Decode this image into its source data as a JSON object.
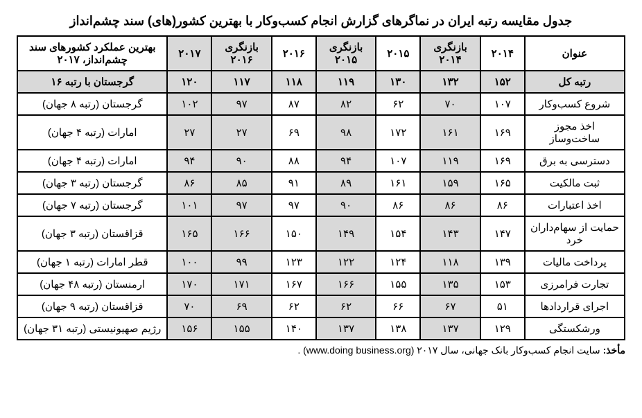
{
  "title": "جدول مقایسه رتبه ایران در نماگرهای گزارش انجام کسب‌وکار با بهترین کشور(های) سند چشم‌انداز",
  "columns": {
    "name": "عنوان",
    "y2014": "۲۰۱۴",
    "rev2014": "بازنگری ۲۰۱۴",
    "y2015": "۲۰۱۵",
    "rev2015": "بازنگری ۲۰۱۵",
    "y2016": "۲۰۱۶",
    "rev2016": "بازنگری ۲۰۱۶",
    "y2017": "۲۰۱۷",
    "best": "بهترین عملکرد کشورهای سند چشم‌انداز، ۲۰۱۷"
  },
  "col_widths": {
    "name": "col-name",
    "y2014": "col-year",
    "rev2014": "col-rev",
    "y2015": "col-year",
    "rev2015": "col-rev",
    "y2016": "col-year",
    "rev2016": "col-rev",
    "y2017": "col-year",
    "best": "col-best"
  },
  "shaded_cols": [
    "rev2014",
    "rev2015",
    "rev2016",
    "y2017"
  ],
  "rows": [
    {
      "name": "رتبه کل",
      "y2014": "۱۵۲",
      "rev2014": "۱۳۲",
      "y2015": "۱۳۰",
      "rev2015": "۱۱۹",
      "y2016": "۱۱۸",
      "rev2016": "۱۱۷",
      "y2017": "۱۲۰",
      "best": "گرجستان با رتبه ۱۶",
      "head": true
    },
    {
      "name": "شروع کسب‌وکار",
      "y2014": "۱۰۷",
      "rev2014": "۷۰",
      "y2015": "۶۲",
      "rev2015": "۸۲",
      "y2016": "۸۷",
      "rev2016": "۹۷",
      "y2017": "۱۰۲",
      "best": "گرجستان (رتبه ۸ جهان)"
    },
    {
      "name": "اخذ مجوز ساخت‌وساز",
      "y2014": "۱۶۹",
      "rev2014": "۱۶۱",
      "y2015": "۱۷۲",
      "rev2015": "۹۸",
      "y2016": "۶۹",
      "rev2016": "۲۷",
      "y2017": "۲۷",
      "best": "امارات (رتبه ۴ جهان)"
    },
    {
      "name": "دسترسی به برق",
      "y2014": "۱۶۹",
      "rev2014": "۱۱۹",
      "y2015": "۱۰۷",
      "rev2015": "۹۴",
      "y2016": "۸۸",
      "rev2016": "۹۰",
      "y2017": "۹۴",
      "best": "امارات (رتبه ۴ جهان)"
    },
    {
      "name": "ثبت مالکیت",
      "y2014": "۱۶۵",
      "rev2014": "۱۵۹",
      "y2015": "۱۶۱",
      "rev2015": "۸۹",
      "y2016": "۹۱",
      "rev2016": "۸۵",
      "y2017": "۸۶",
      "best": "گرجستان (رتبه ۳ جهان)"
    },
    {
      "name": "اخذ اعتبارات",
      "y2014": "۸۶",
      "rev2014": "۸۶",
      "y2015": "۸۶",
      "rev2015": "۹۰",
      "y2016": "۹۷",
      "rev2016": "۹۷",
      "y2017": "۱۰۱",
      "best": "گرجستان (رتبه ۷ جهان)"
    },
    {
      "name": "حمایت از سهام‌داران خرد",
      "y2014": "۱۴۷",
      "rev2014": "۱۴۳",
      "y2015": "۱۵۴",
      "rev2015": "۱۴۹",
      "y2016": "۱۵۰",
      "rev2016": "۱۶۶",
      "y2017": "۱۶۵",
      "best": "قزاقستان (رتبه ۳ جهان)"
    },
    {
      "name": "پرداخت مالیات",
      "y2014": "۱۳۹",
      "rev2014": "۱۱۸",
      "y2015": "۱۲۴",
      "rev2015": "۱۲۲",
      "y2016": "۱۲۳",
      "rev2016": "۹۹",
      "y2017": "۱۰۰",
      "best": "قطر امارات (رتبه ۱ جهان)"
    },
    {
      "name": "تجارت فرامرزی",
      "y2014": "۱۵۳",
      "rev2014": "۱۳۵",
      "y2015": "۱۵۵",
      "rev2015": "۱۶۶",
      "y2016": "۱۶۷",
      "rev2016": "۱۷۱",
      "y2017": "۱۷۰",
      "best": "ارمنستان (رتبه ۴۸ جهان)"
    },
    {
      "name": "اجرای قراردادها",
      "y2014": "۵۱",
      "rev2014": "۶۷",
      "y2015": "۶۶",
      "rev2015": "۶۲",
      "y2016": "۶۲",
      "rev2016": "۶۹",
      "y2017": "۷۰",
      "best": "قزاقستان (رتبه ۹ جهان)"
    },
    {
      "name": "ورشکستگی",
      "y2014": "۱۲۹",
      "rev2014": "۱۳۷",
      "y2015": "۱۳۸",
      "rev2015": "۱۳۷",
      "y2016": "۱۴۰",
      "rev2016": "۱۵۵",
      "y2017": "۱۵۶",
      "best": "رژیم صهیونیستی (رتبه ۳۱ جهان)"
    }
  ],
  "source_label": "مأخذ:",
  "source_text_before": " سایت انجام کسب‌وکار بانک جهانی، سال ۲۰۱۷ ",
  "source_url": "(www.doing business.org)",
  "source_text_after": ".",
  "colors": {
    "shade": "#d9d9d9",
    "border": "#000000",
    "bg": "#ffffff",
    "text": "#000000"
  }
}
